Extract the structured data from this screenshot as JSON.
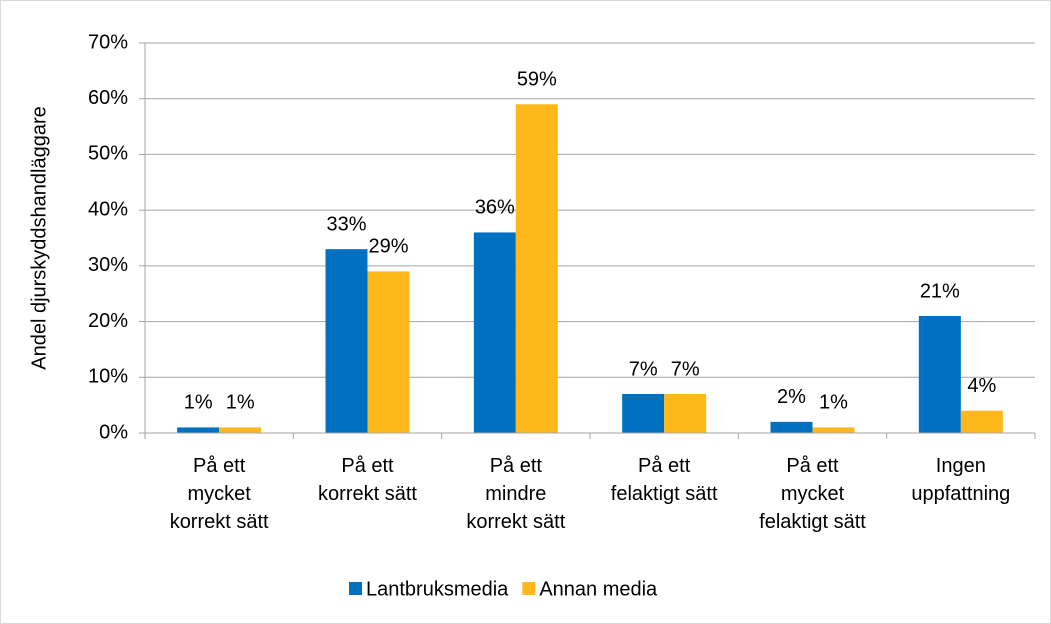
{
  "chart_data": {
    "type": "bar",
    "y_label": "Andel djurskyddshandläggare",
    "categories": [
      "På ett\nmycket\nkorrekt sätt",
      "På ett\nkorrekt sätt",
      "På ett\nmindre\nkorrekt sätt",
      "På ett\nfelaktigt sätt",
      "På ett\nmycket\nfelaktigt sätt",
      "Ingen\nuppfattning"
    ],
    "series": [
      {
        "name": "Lantbruksmedia",
        "color": "#0070c0",
        "values": [
          1,
          33,
          36,
          7,
          2,
          21
        ],
        "value_labels": [
          "1%",
          "33%",
          "36%",
          "7%",
          "2%",
          "21%"
        ]
      },
      {
        "name": "Annan media",
        "color": "#ffb81c",
        "values": [
          1,
          29,
          59,
          7,
          1,
          4
        ],
        "value_labels": [
          "1%",
          "29%",
          "59%",
          "7%",
          "1%",
          "4%"
        ]
      }
    ],
    "ylim": [
      0,
      70
    ],
    "yticks": [
      {
        "value": 0,
        "label": "0%"
      },
      {
        "value": 10,
        "label": "10%"
      },
      {
        "value": 20,
        "label": "20%"
      },
      {
        "value": 30,
        "label": "30%"
      },
      {
        "value": 40,
        "label": "40%"
      },
      {
        "value": 50,
        "label": "50%"
      },
      {
        "value": 60,
        "label": "60%"
      },
      {
        "value": 70,
        "label": "70%"
      }
    ],
    "grid": true,
    "legend": "bottom"
  }
}
